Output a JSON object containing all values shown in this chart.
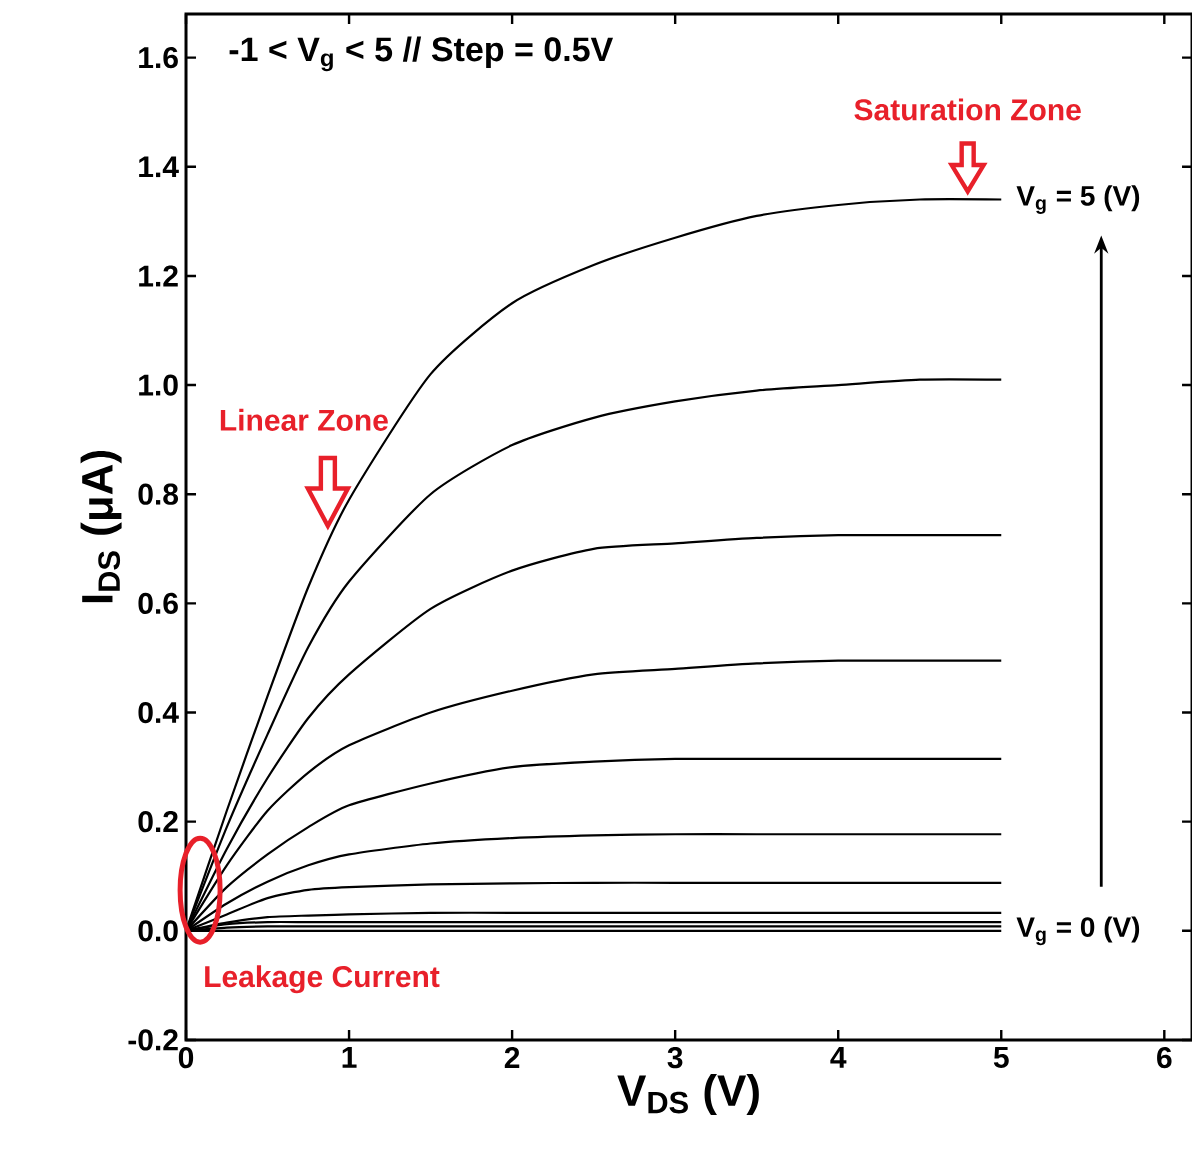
{
  "chart_data": {
    "type": "line",
    "title": "-1 < V$_{g}$ < 5 // Step = 0.5V",
    "xlabel": "V$_{DS}$ (V)",
    "ylabel": "I$_{DS}$ (μA)",
    "xlim": [
      0,
      6.17
    ],
    "ylim": [
      -0.2,
      1.68
    ],
    "xticks": [
      0,
      1,
      2,
      3,
      4,
      5,
      6
    ],
    "yticks": [
      -0.2,
      {
        "value": 0,
        "label": "0.0"
      },
      0.2,
      0.4,
      0.6,
      0.8,
      {
        "value": 1,
        "label": "1.0"
      },
      1.2,
      1.4,
      1.6
    ],
    "x": [
      0,
      0.25,
      0.5,
      0.75,
      1,
      1.5,
      2,
      2.5,
      3,
      3.5,
      4,
      4.5,
      5
    ],
    "series": [
      {
        "color": "#000000",
        "values": [
          0,
          0.22,
          0.43,
          0.63,
          0.79,
          1.02,
          1.15,
          1.22,
          1.27,
          1.31,
          1.33,
          1.34,
          1.34
        ]
      },
      {
        "color": "#000000",
        "values": [
          0,
          0.19,
          0.36,
          0.52,
          0.64,
          0.8,
          0.89,
          0.94,
          0.97,
          0.99,
          1.0,
          1.01,
          1.01
        ]
      },
      {
        "color": "#000000",
        "values": [
          0,
          0.15,
          0.28,
          0.39,
          0.47,
          0.59,
          0.66,
          0.7,
          0.71,
          0.72,
          0.725,
          0.725,
          0.725
        ]
      },
      {
        "color": "#000000",
        "values": [
          0,
          0.12,
          0.22,
          0.29,
          0.34,
          0.4,
          0.44,
          0.47,
          0.48,
          0.49,
          0.495,
          0.495,
          0.495
        ]
      },
      {
        "color": "#000000",
        "values": [
          0,
          0.08,
          0.14,
          0.19,
          0.23,
          0.27,
          0.3,
          0.31,
          0.315,
          0.315,
          0.315,
          0.315,
          0.315
        ]
      },
      {
        "color": "#000000",
        "values": [
          0,
          0.05,
          0.09,
          0.12,
          0.14,
          0.16,
          0.17,
          0.175,
          0.177,
          0.177,
          0.177,
          0.177,
          0.177
        ]
      },
      {
        "color": "#000000",
        "values": [
          0,
          0.03,
          0.06,
          0.075,
          0.08,
          0.085,
          0.087,
          0.088,
          0.088,
          0.088,
          0.088,
          0.088,
          0.088
        ]
      },
      {
        "color": "#000000",
        "values": [
          0,
          0.015,
          0.025,
          0.028,
          0.03,
          0.033,
          0.033,
          0.033,
          0.033,
          0.033,
          0.033,
          0.033,
          0.033
        ]
      },
      {
        "color": "#000000",
        "values": [
          0,
          0.012,
          0.016,
          0.016,
          0.016,
          0.016,
          0.016,
          0.016,
          0.016,
          0.016,
          0.016,
          0.016,
          0.016
        ]
      },
      {
        "color": "#000000",
        "values": [
          0,
          0.006,
          0.008,
          0.008,
          0.008,
          0.008,
          0.008,
          0.008,
          0.008,
          0.008,
          0.008,
          0.008,
          0.008
        ]
      },
      {
        "color": "#000000",
        "values": [
          0,
          0,
          0,
          0,
          0,
          0,
          0,
          0,
          0,
          0,
          0,
          0,
          0
        ]
      }
    ],
    "annotations": [
      "Linear Zone",
      "Saturation Zone",
      "Leakage Current",
      "V$_{g}$ = 5 (V)",
      "V$_{g}$ = 0 (V)"
    ],
    "grid": false,
    "marker": "none",
    "line_style": "solid"
  }
}
